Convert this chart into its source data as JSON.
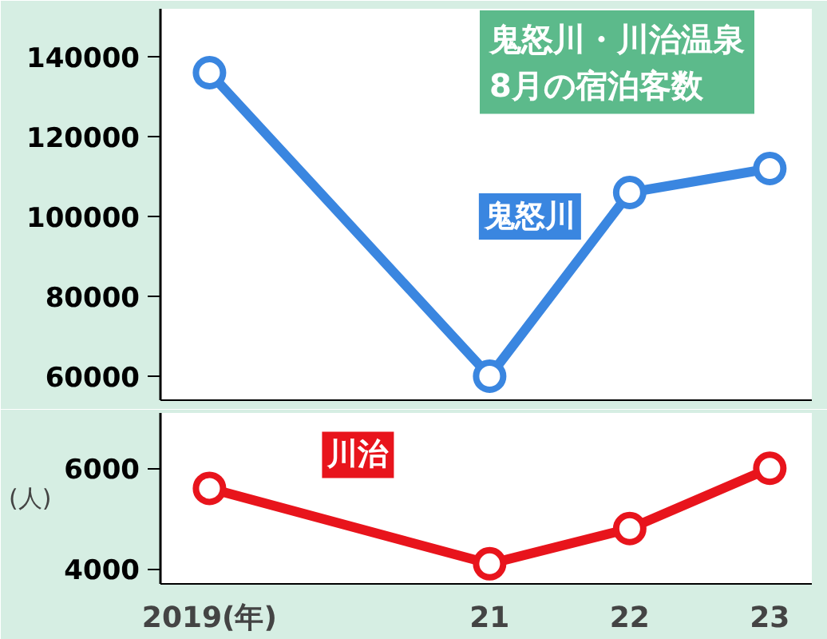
{
  "chart_data": [
    {
      "type": "line",
      "title": "鬼怒川・川治温泉\n8月の宿泊客数",
      "x": [
        2019,
        2021,
        2022,
        2023
      ],
      "xlim": [
        2018.65,
        2023.3
      ],
      "ylim": [
        54000,
        152000
      ],
      "yticks": [
        60000,
        80000,
        100000,
        120000,
        140000
      ],
      "xticks": [
        {
          "value": 2019,
          "label": null
        },
        {
          "value": 2021,
          "label": null
        },
        {
          "value": 2022,
          "label": null
        },
        {
          "value": 2023,
          "label": null
        }
      ],
      "tick_labels": "y",
      "marker": "circle",
      "grid": false,
      "series": [
        {
          "name": "鬼怒川",
          "color": "#3a86e0",
          "values": [
            136000,
            60000,
            106000,
            112000
          ]
        }
      ]
    },
    {
      "type": "line",
      "ylabel": "(人)",
      "x": [
        2019,
        2021,
        2022,
        2023
      ],
      "xlim": [
        2018.65,
        2023.3
      ],
      "ylim": [
        3700,
        7100
      ],
      "yticks": [
        4000,
        6000
      ],
      "xticks": [
        {
          "value": 2019,
          "label": "2019(年)"
        },
        {
          "value": 2021,
          "label": "21"
        },
        {
          "value": 2022,
          "label": "22"
        },
        {
          "value": 2023,
          "label": "23"
        }
      ],
      "marker": "circle",
      "grid": false,
      "series": [
        {
          "name": "川治",
          "color": "#e8141c",
          "values": [
            5600,
            4100,
            4800,
            6000
          ]
        }
      ]
    }
  ]
}
